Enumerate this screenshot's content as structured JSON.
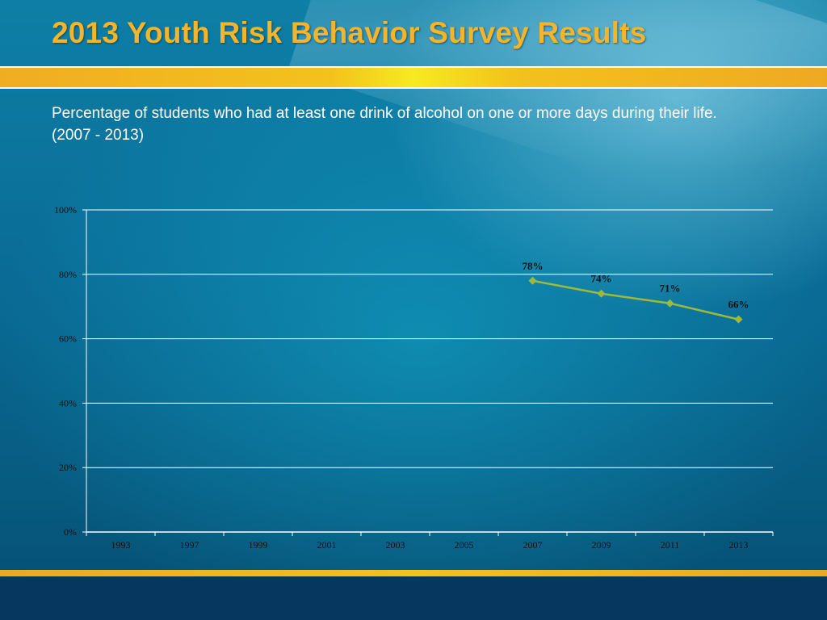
{
  "slide": {
    "title": "2013 Youth Risk Behavior Survey Results",
    "subtitle_line1": "Percentage of students who had at least one drink of alcohol on one or more days during their life.",
    "subtitle_line2": "(2007 - 2013)"
  },
  "colors": {
    "title": "#f4b52a",
    "series_line": "#9fba3a",
    "gridline": "#ffffff",
    "bottom_band": "#06385f"
  },
  "chart_data": {
    "type": "line",
    "title": "",
    "xlabel": "",
    "ylabel": "",
    "categories": [
      "1993",
      "1997",
      "1999",
      "2001",
      "2003",
      "2005",
      "2007",
      "2009",
      "2011",
      "2013"
    ],
    "series": [
      {
        "values": [
          null,
          null,
          null,
          null,
          null,
          null,
          78,
          74,
          71,
          66
        ],
        "data_labels": [
          null,
          null,
          null,
          null,
          null,
          null,
          "78%",
          "74%",
          "71%",
          "66%"
        ]
      }
    ],
    "y_ticks": [
      "0%",
      "20%",
      "40%",
      "60%",
      "80%",
      "100%"
    ],
    "ylim": [
      0,
      100
    ],
    "grid": true,
    "legend": "none"
  }
}
